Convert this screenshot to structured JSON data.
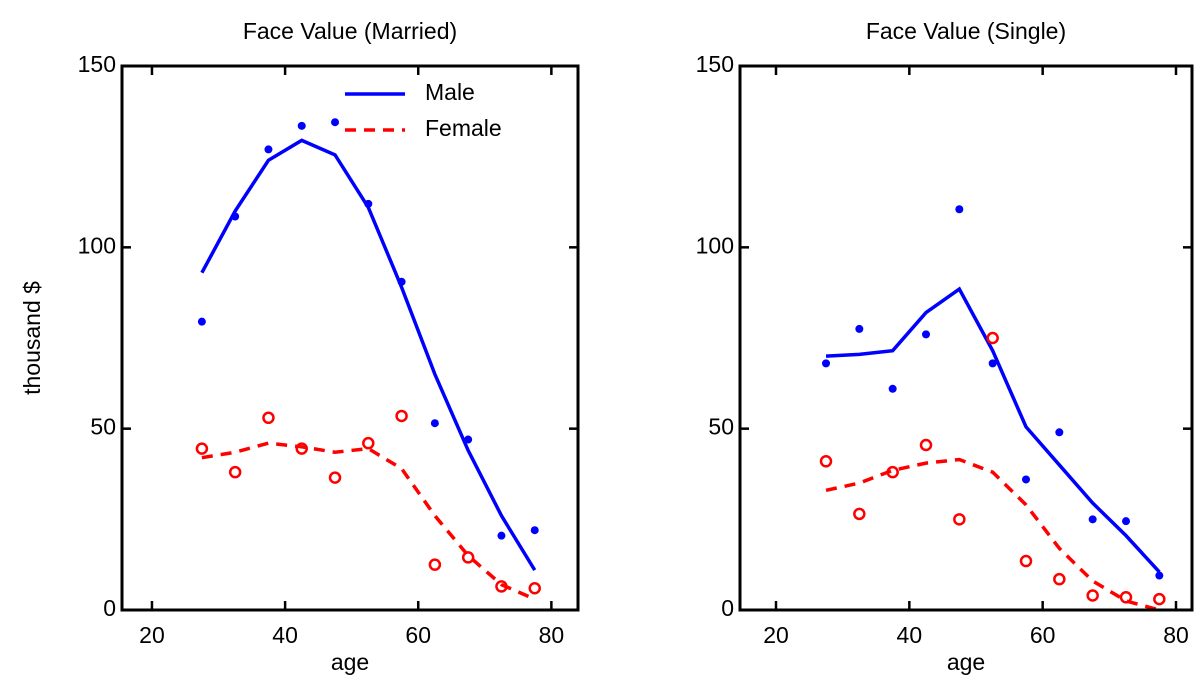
{
  "chart_data": [
    {
      "type": "line",
      "title": "Face Value (Married)",
      "xlabel": "age",
      "ylabel": "thousand $",
      "x": [
        27.5,
        32.5,
        37.5,
        42.5,
        47.5,
        52.5,
        57.5,
        62.5,
        67.5,
        72.5,
        77.5
      ],
      "xlim": [
        15.5,
        84
      ],
      "xticks": [
        20,
        40,
        60,
        80
      ],
      "ylim": [
        0,
        150
      ],
      "yticks": [
        0,
        50,
        100,
        150
      ],
      "legend": "upper right",
      "series": [
        {
          "name": "Male",
          "color": "#0000ff",
          "style": "solid",
          "values": [
            93,
            110,
            124,
            129.5,
            125.5,
            111,
            89,
            65,
            44,
            26,
            11
          ],
          "points": [
            79.5,
            108.5,
            127,
            133.5,
            134.5,
            112,
            90.5,
            51.5,
            47,
            20.5,
            22
          ]
        },
        {
          "name": "Female",
          "color": "#ff0000",
          "style": "dashed",
          "values": [
            42,
            43.5,
            46,
            45,
            43.5,
            44.5,
            39,
            26,
            15,
            7,
            3
          ],
          "points": [
            44.5,
            38,
            53,
            44.5,
            36.5,
            46,
            53.5,
            12.5,
            14.5,
            6.5,
            6
          ]
        }
      ]
    },
    {
      "type": "line",
      "title": "Face Value (Single)",
      "xlabel": "age",
      "x": [
        27.5,
        32.5,
        37.5,
        42.5,
        47.5,
        52.5,
        57.5,
        62.5,
        67.5,
        72.5,
        77.5
      ],
      "xlim": [
        14.6,
        82.4
      ],
      "xticks": [
        20,
        40,
        60,
        80
      ],
      "ylim": [
        0,
        150
      ],
      "yticks": [
        0,
        50,
        100,
        150
      ],
      "series": [
        {
          "color": "#0000ff",
          "style": "solid",
          "values": [
            70,
            70.5,
            71.5,
            82,
            88.5,
            71.5,
            50.5,
            40,
            29.5,
            20.5,
            10.5
          ],
          "points": [
            68,
            77.5,
            61,
            76,
            110.5,
            68,
            36,
            49,
            25,
            24.5,
            9.5
          ]
        },
        {
          "color": "#ff0000",
          "style": "dashed",
          "values": [
            33,
            35,
            38.5,
            40.5,
            41.5,
            38,
            29,
            17,
            8,
            2.5,
            0
          ],
          "points": [
            41,
            26.5,
            38,
            45.5,
            25,
            75,
            13.5,
            8.5,
            4,
            3.5,
            3
          ]
        }
      ]
    }
  ]
}
